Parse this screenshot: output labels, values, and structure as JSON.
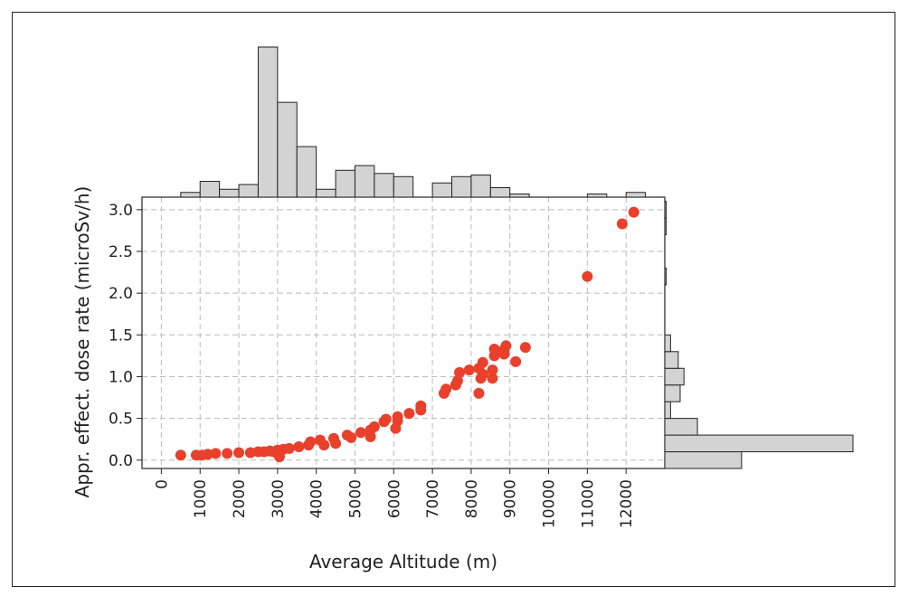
{
  "chart_data": {
    "type": "scatter",
    "xlabel": "Average Altitude (m)",
    "ylabel": "Appr. effect. dose rate (microSv/h)",
    "xlim": [
      -500,
      13000
    ],
    "ylim": [
      -0.1,
      3.15
    ],
    "x_ticks": [
      0,
      1000,
      2000,
      3000,
      4000,
      5000,
      6000,
      7000,
      8000,
      9000,
      10000,
      11000,
      12000
    ],
    "x_tick_labels": [
      "0",
      "1000",
      "2000",
      "3000",
      "4000",
      "5000",
      "6000",
      "7000",
      "8000",
      "9000",
      "10000",
      "11000",
      "12000"
    ],
    "y_ticks": [
      0.0,
      0.5,
      1.0,
      1.5,
      2.0,
      2.5,
      3.0
    ],
    "y_tick_labels": [
      "0.0",
      "0.5",
      "1.0",
      "1.5",
      "2.0",
      "2.5",
      "3.0"
    ],
    "grid": true,
    "point_color": "#e8402a",
    "points": [
      [
        500,
        0.06
      ],
      [
        900,
        0.06
      ],
      [
        1050,
        0.06
      ],
      [
        1200,
        0.07
      ],
      [
        1400,
        0.08
      ],
      [
        1700,
        0.08
      ],
      [
        2000,
        0.09
      ],
      [
        2300,
        0.09
      ],
      [
        2500,
        0.1
      ],
      [
        2650,
        0.1
      ],
      [
        2800,
        0.11
      ],
      [
        2900,
        0.1
      ],
      [
        3000,
        0.12
      ],
      [
        3050,
        0.04
      ],
      [
        3150,
        0.13
      ],
      [
        3300,
        0.14
      ],
      [
        3550,
        0.16
      ],
      [
        3800,
        0.18
      ],
      [
        3850,
        0.22
      ],
      [
        4100,
        0.24
      ],
      [
        4200,
        0.18
      ],
      [
        4450,
        0.26
      ],
      [
        4500,
        0.2
      ],
      [
        4800,
        0.3
      ],
      [
        4900,
        0.27
      ],
      [
        5150,
        0.33
      ],
      [
        5400,
        0.28
      ],
      [
        5400,
        0.36
      ],
      [
        5500,
        0.4
      ],
      [
        5750,
        0.46
      ],
      [
        5800,
        0.49
      ],
      [
        6050,
        0.38
      ],
      [
        6100,
        0.47
      ],
      [
        6100,
        0.52
      ],
      [
        6400,
        0.56
      ],
      [
        6700,
        0.6
      ],
      [
        6700,
        0.65
      ],
      [
        7300,
        0.8
      ],
      [
        7350,
        0.85
      ],
      [
        7600,
        0.9
      ],
      [
        7650,
        0.95
      ],
      [
        7700,
        1.05
      ],
      [
        7950,
        1.08
      ],
      [
        8200,
        0.8
      ],
      [
        8200,
        1.1
      ],
      [
        8250,
        0.98
      ],
      [
        8300,
        1.03
      ],
      [
        8300,
        1.17
      ],
      [
        8550,
        0.98
      ],
      [
        8550,
        1.08
      ],
      [
        8600,
        1.25
      ],
      [
        8600,
        1.33
      ],
      [
        8850,
        1.27
      ],
      [
        8850,
        1.32
      ],
      [
        8900,
        1.37
      ],
      [
        9150,
        1.18
      ],
      [
        9400,
        1.35
      ],
      [
        11000,
        2.2
      ],
      [
        11900,
        2.83
      ],
      [
        12200,
        2.97
      ]
    ],
    "x_histogram": {
      "bin_width": 500,
      "bins": [
        [
          500,
          0.3
        ],
        [
          1000,
          1.0
        ],
        [
          1500,
          0.5
        ],
        [
          2000,
          0.8
        ],
        [
          2500,
          9.5
        ],
        [
          3000,
          6.0
        ],
        [
          3500,
          3.2
        ],
        [
          4000,
          0.5
        ],
        [
          4500,
          1.7
        ],
        [
          5000,
          2.0
        ],
        [
          5500,
          1.5
        ],
        [
          6000,
          1.3
        ],
        [
          7000,
          0.9
        ],
        [
          7500,
          1.3
        ],
        [
          8000,
          1.4
        ],
        [
          8500,
          0.6
        ],
        [
          9000,
          0.2
        ],
        [
          11000,
          0.2
        ],
        [
          12000,
          0.3
        ]
      ]
    },
    "y_histogram": {
      "bin_width": 0.2,
      "bins": [
        [
          -0.1,
          4.0
        ],
        [
          0.1,
          9.8
        ],
        [
          0.3,
          1.7
        ],
        [
          0.5,
          0.3
        ],
        [
          0.7,
          0.8
        ],
        [
          0.9,
          1.0
        ],
        [
          1.1,
          0.7
        ],
        [
          1.3,
          0.3
        ],
        [
          2.1,
          0.07
        ],
        [
          2.7,
          0.07
        ],
        [
          2.9,
          0.07
        ]
      ]
    }
  }
}
